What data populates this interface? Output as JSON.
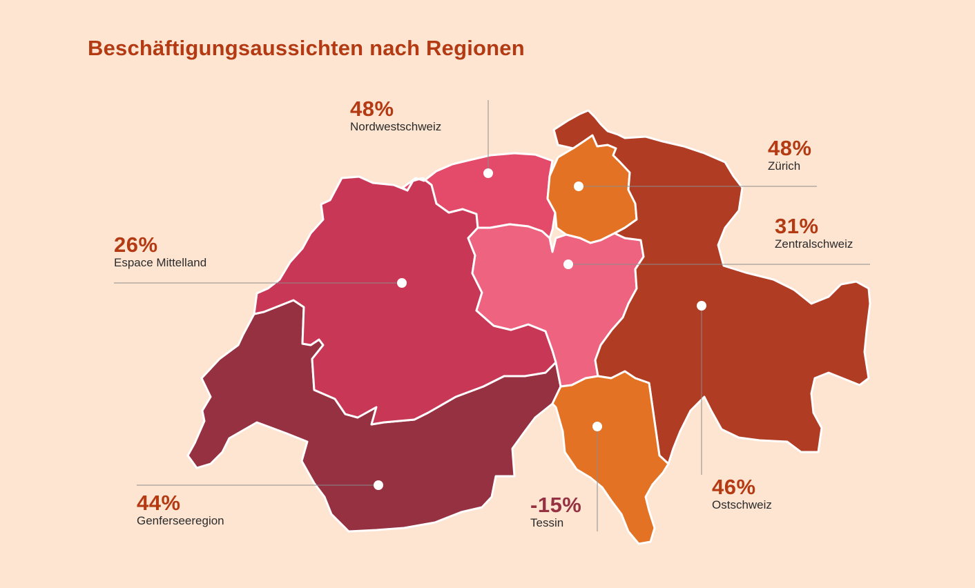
{
  "title": "Beschäftigungsaussichten nach Regionen",
  "regions": {
    "nordwestschweiz": {
      "name": "Nordwestschweiz",
      "value": "48%",
      "color": "#e44a69"
    },
    "zuerich": {
      "name": "Zürich",
      "value": "48%",
      "color": "#e37224"
    },
    "zentralschweiz": {
      "name": "Zentralschweiz",
      "value": "31%",
      "color": "#ee6480"
    },
    "espace_mittelland": {
      "name": "Espace Mittelland",
      "value": "26%",
      "color": "#c93756"
    },
    "ostschweiz": {
      "name": "Ostschweiz",
      "value": "46%",
      "color": "#b03c24"
    },
    "genferseeregion": {
      "name": "Genferseeregion",
      "value": "44%",
      "color": "#953141"
    },
    "tessin": {
      "name": "Tessin",
      "value": "-15%",
      "color": "#e37224"
    }
  },
  "colors": {
    "background": "#fde5d2",
    "title": "#b33a12",
    "value_text": "#b33a12",
    "value_text_tessin": "#953141",
    "leader_line": "#8c8c8c"
  }
}
